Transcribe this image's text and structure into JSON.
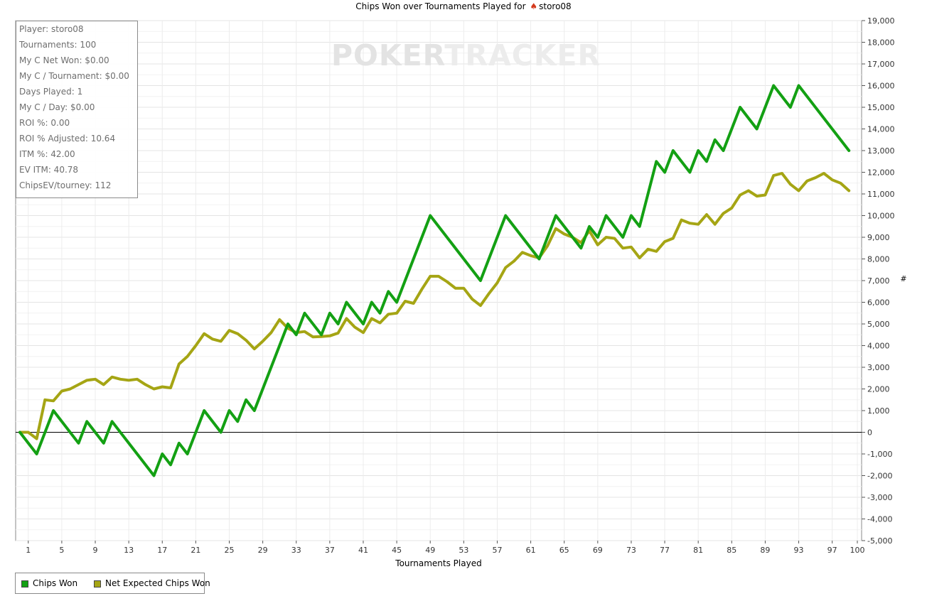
{
  "title": {
    "prefix": "Chips Won over Tournaments Played for",
    "player": "storo08",
    "suit_icon": "spade-icon"
  },
  "watermark": {
    "left": "POKER",
    "right": "TRACKER"
  },
  "stats": [
    "Player: storo08",
    "Tournaments: 100",
    "My C Net Won: $0.00",
    "My C / Tournament: $0.00",
    "Days Played: 1",
    "My C / Day: $0.00",
    "ROI %: 0.00",
    "ROI % Adjusted: 10.64",
    "ITM %: 42.00",
    "EV ITM: 40.78",
    "ChipsEV/tourney: 112"
  ],
  "legend": [
    {
      "label": "Chips Won",
      "color": "#13a013"
    },
    {
      "label": "Net Expected Chips Won",
      "color": "#a5a514"
    }
  ],
  "chart_data": {
    "type": "line",
    "xlabel": "Tournaments Played",
    "ylabel": "#",
    "xlim": [
      0,
      100
    ],
    "ylim": [
      -5000,
      19000
    ],
    "x_ticks": [
      1,
      5,
      9,
      13,
      17,
      21,
      25,
      29,
      33,
      37,
      41,
      45,
      49,
      53,
      57,
      61,
      65,
      69,
      73,
      77,
      81,
      85,
      89,
      93,
      97,
      100
    ],
    "y_ticks": [
      -5000,
      -4000,
      -3000,
      -2000,
      -1000,
      0,
      1000,
      2000,
      3000,
      4000,
      5000,
      6000,
      7000,
      8000,
      9000,
      10000,
      11000,
      12000,
      13000,
      14000,
      15000,
      16000,
      17000,
      18000,
      19000
    ],
    "y_tick_labels": [
      "-5,000",
      "-4,000",
      "-3,000",
      "-2,000",
      "-1,000",
      "0",
      "1,000",
      "2,000",
      "3,000",
      "4,000",
      "5,000",
      "6,000",
      "7,000",
      "8,000",
      "9,000",
      "10,000",
      "11,000",
      "12,000",
      "13,000",
      "14,000",
      "15,000",
      "16,000",
      "17,000",
      "18,000",
      "19,000"
    ],
    "grid": true,
    "legend_position": "bottom-left",
    "series": [
      {
        "name": "Chips Won",
        "color": "#13a013",
        "points": [
          [
            0,
            0
          ],
          [
            2,
            -1000
          ],
          [
            4,
            1000
          ],
          [
            7,
            -500
          ],
          [
            8,
            500
          ],
          [
            10,
            -500
          ],
          [
            11,
            500
          ],
          [
            16,
            -2000
          ],
          [
            17,
            -1000
          ],
          [
            18,
            -1500
          ],
          [
            19,
            -500
          ],
          [
            20,
            -1000
          ],
          [
            22,
            1000
          ],
          [
            24,
            0
          ],
          [
            25,
            1000
          ],
          [
            26,
            500
          ],
          [
            27,
            1500
          ],
          [
            28,
            1000
          ],
          [
            32,
            5000
          ],
          [
            33,
            4500
          ],
          [
            34,
            5500
          ],
          [
            36,
            4500
          ],
          [
            37,
            5500
          ],
          [
            38,
            5000
          ],
          [
            39,
            6000
          ],
          [
            41,
            5000
          ],
          [
            42,
            6000
          ],
          [
            43,
            5500
          ],
          [
            44,
            6500
          ],
          [
            45,
            6000
          ],
          [
            49,
            10000
          ],
          [
            55,
            7000
          ],
          [
            58,
            10000
          ],
          [
            62,
            8000
          ],
          [
            64,
            10000
          ],
          [
            66,
            9000
          ],
          [
            67,
            8500
          ],
          [
            68,
            9500
          ],
          [
            69,
            9000
          ],
          [
            70,
            10000
          ],
          [
            72,
            9000
          ],
          [
            73,
            10000
          ],
          [
            74,
            9500
          ],
          [
            76,
            12500
          ],
          [
            77,
            12000
          ],
          [
            78,
            13000
          ],
          [
            80,
            12000
          ],
          [
            81,
            13000
          ],
          [
            82,
            12500
          ],
          [
            83,
            13500
          ],
          [
            84,
            13000
          ],
          [
            86,
            15000
          ],
          [
            88,
            14000
          ],
          [
            90,
            16000
          ],
          [
            92,
            15000
          ],
          [
            93,
            16000
          ],
          [
            99,
            13000
          ]
        ]
      },
      {
        "name": "Net Expected Chips Won",
        "color": "#a5a514",
        "points": [
          [
            0,
            0
          ],
          [
            1,
            0
          ],
          [
            2,
            -300
          ],
          [
            3,
            1500
          ],
          [
            4,
            1450
          ],
          [
            5,
            1900
          ],
          [
            6,
            2000
          ],
          [
            7,
            2200
          ],
          [
            8,
            2400
          ],
          [
            9,
            2450
          ],
          [
            10,
            2200
          ],
          [
            11,
            2550
          ],
          [
            12,
            2450
          ],
          [
            13,
            2400
          ],
          [
            14,
            2450
          ],
          [
            15,
            2200
          ],
          [
            16,
            2000
          ],
          [
            17,
            2100
          ],
          [
            18,
            2050
          ],
          [
            19,
            3150
          ],
          [
            20,
            3500
          ],
          [
            21,
            4000
          ],
          [
            22,
            4550
          ],
          [
            23,
            4300
          ],
          [
            24,
            4200
          ],
          [
            25,
            4700
          ],
          [
            26,
            4550
          ],
          [
            27,
            4250
          ],
          [
            28,
            3850
          ],
          [
            29,
            4200
          ],
          [
            30,
            4600
          ],
          [
            31,
            5200
          ],
          [
            32,
            4800
          ],
          [
            33,
            4600
          ],
          [
            34,
            4650
          ],
          [
            35,
            4400
          ],
          [
            36,
            4420
          ],
          [
            37,
            4450
          ],
          [
            38,
            4580
          ],
          [
            39,
            5250
          ],
          [
            40,
            4850
          ],
          [
            41,
            4600
          ],
          [
            42,
            5250
          ],
          [
            43,
            5050
          ],
          [
            44,
            5450
          ],
          [
            45,
            5500
          ],
          [
            46,
            6050
          ],
          [
            47,
            5950
          ],
          [
            48,
            6600
          ],
          [
            49,
            7200
          ],
          [
            50,
            7200
          ],
          [
            51,
            6950
          ],
          [
            52,
            6650
          ],
          [
            53,
            6650
          ],
          [
            54,
            6150
          ],
          [
            55,
            5850
          ],
          [
            56,
            6400
          ],
          [
            57,
            6900
          ],
          [
            58,
            7600
          ],
          [
            59,
            7900
          ],
          [
            60,
            8300
          ],
          [
            61,
            8150
          ],
          [
            62,
            8050
          ],
          [
            63,
            8600
          ],
          [
            64,
            9400
          ],
          [
            65,
            9150
          ],
          [
            66,
            9000
          ],
          [
            67,
            8750
          ],
          [
            68,
            9300
          ],
          [
            69,
            8650
          ],
          [
            70,
            9000
          ],
          [
            71,
            8950
          ],
          [
            72,
            8500
          ],
          [
            73,
            8550
          ],
          [
            74,
            8050
          ],
          [
            75,
            8450
          ],
          [
            76,
            8350
          ],
          [
            77,
            8800
          ],
          [
            78,
            8950
          ],
          [
            79,
            9800
          ],
          [
            80,
            9650
          ],
          [
            81,
            9600
          ],
          [
            82,
            10050
          ],
          [
            83,
            9600
          ],
          [
            84,
            10100
          ],
          [
            85,
            10350
          ],
          [
            86,
            10950
          ],
          [
            87,
            11150
          ],
          [
            88,
            10900
          ],
          [
            89,
            10950
          ],
          [
            90,
            11850
          ],
          [
            91,
            11950
          ],
          [
            92,
            11450
          ],
          [
            93,
            11150
          ],
          [
            94,
            11600
          ],
          [
            95,
            11750
          ],
          [
            96,
            11950
          ],
          [
            97,
            11650
          ],
          [
            98,
            11500
          ],
          [
            99,
            11150
          ]
        ]
      }
    ]
  }
}
